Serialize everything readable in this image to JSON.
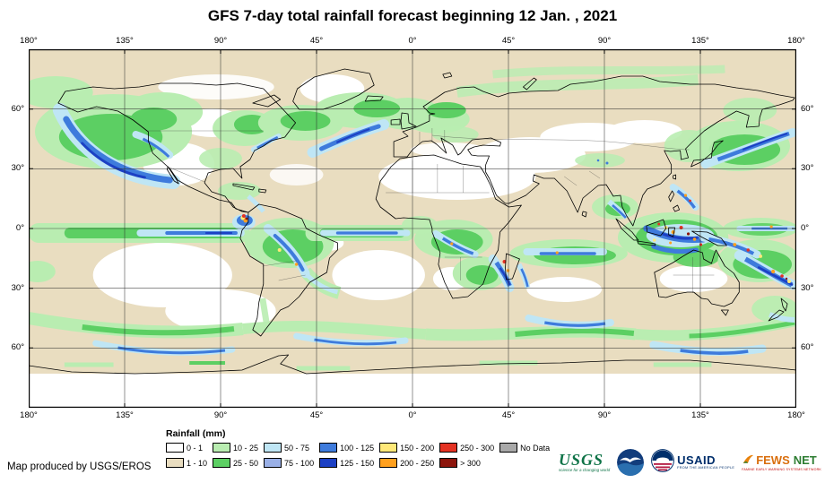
{
  "title": "GFS 7-day total rainfall forecast beginning 12 Jan. , 2021",
  "map": {
    "lon_labels": [
      "180°",
      "135°",
      "90°",
      "45°",
      "0°",
      "45°",
      "90°",
      "135°",
      "180°"
    ],
    "lat_labels": [
      "60°",
      "30°",
      "0°",
      "30°",
      "60°"
    ]
  },
  "legend": {
    "title": "Rainfall (mm)",
    "entries": [
      {
        "label": "0 - 1",
        "color": "#FFFFFF"
      },
      {
        "label": "1 - 10",
        "color": "#E9DDC0"
      },
      {
        "label": "10 - 25",
        "color": "#B9EDB1"
      },
      {
        "label": "25 - 50",
        "color": "#5CCF63"
      },
      {
        "label": "50 - 75",
        "color": "#BFE6F5"
      },
      {
        "label": "75 - 100",
        "color": "#9AB0E6"
      },
      {
        "label": "100 - 125",
        "color": "#3E7BDC"
      },
      {
        "label": "125 - 150",
        "color": "#1C40C4"
      },
      {
        "label": "150 - 200",
        "color": "#FFE979"
      },
      {
        "label": "200 - 250",
        "color": "#FFA01E"
      },
      {
        "label": "250 - 300",
        "color": "#E43223"
      },
      {
        "label": "> 300",
        "color": "#8C150C"
      },
      {
        "label": "No Data",
        "color": "#A9A9A9"
      }
    ]
  },
  "footer": {
    "credit": "Map produced by USGS/EROS"
  },
  "logos": {
    "usgs": {
      "name": "USGS",
      "tagline": "science for a changing world"
    },
    "noaa": {
      "name": "NOAA"
    },
    "usaid": {
      "name": "USAID",
      "tagline": "FROM THE AMERICAN PEOPLE"
    },
    "fewsnet": {
      "name_left": "FEWS",
      "name_right": "NET",
      "tagline": "FAMINE EARLY WARNING SYSTEMS NETWORK"
    }
  }
}
